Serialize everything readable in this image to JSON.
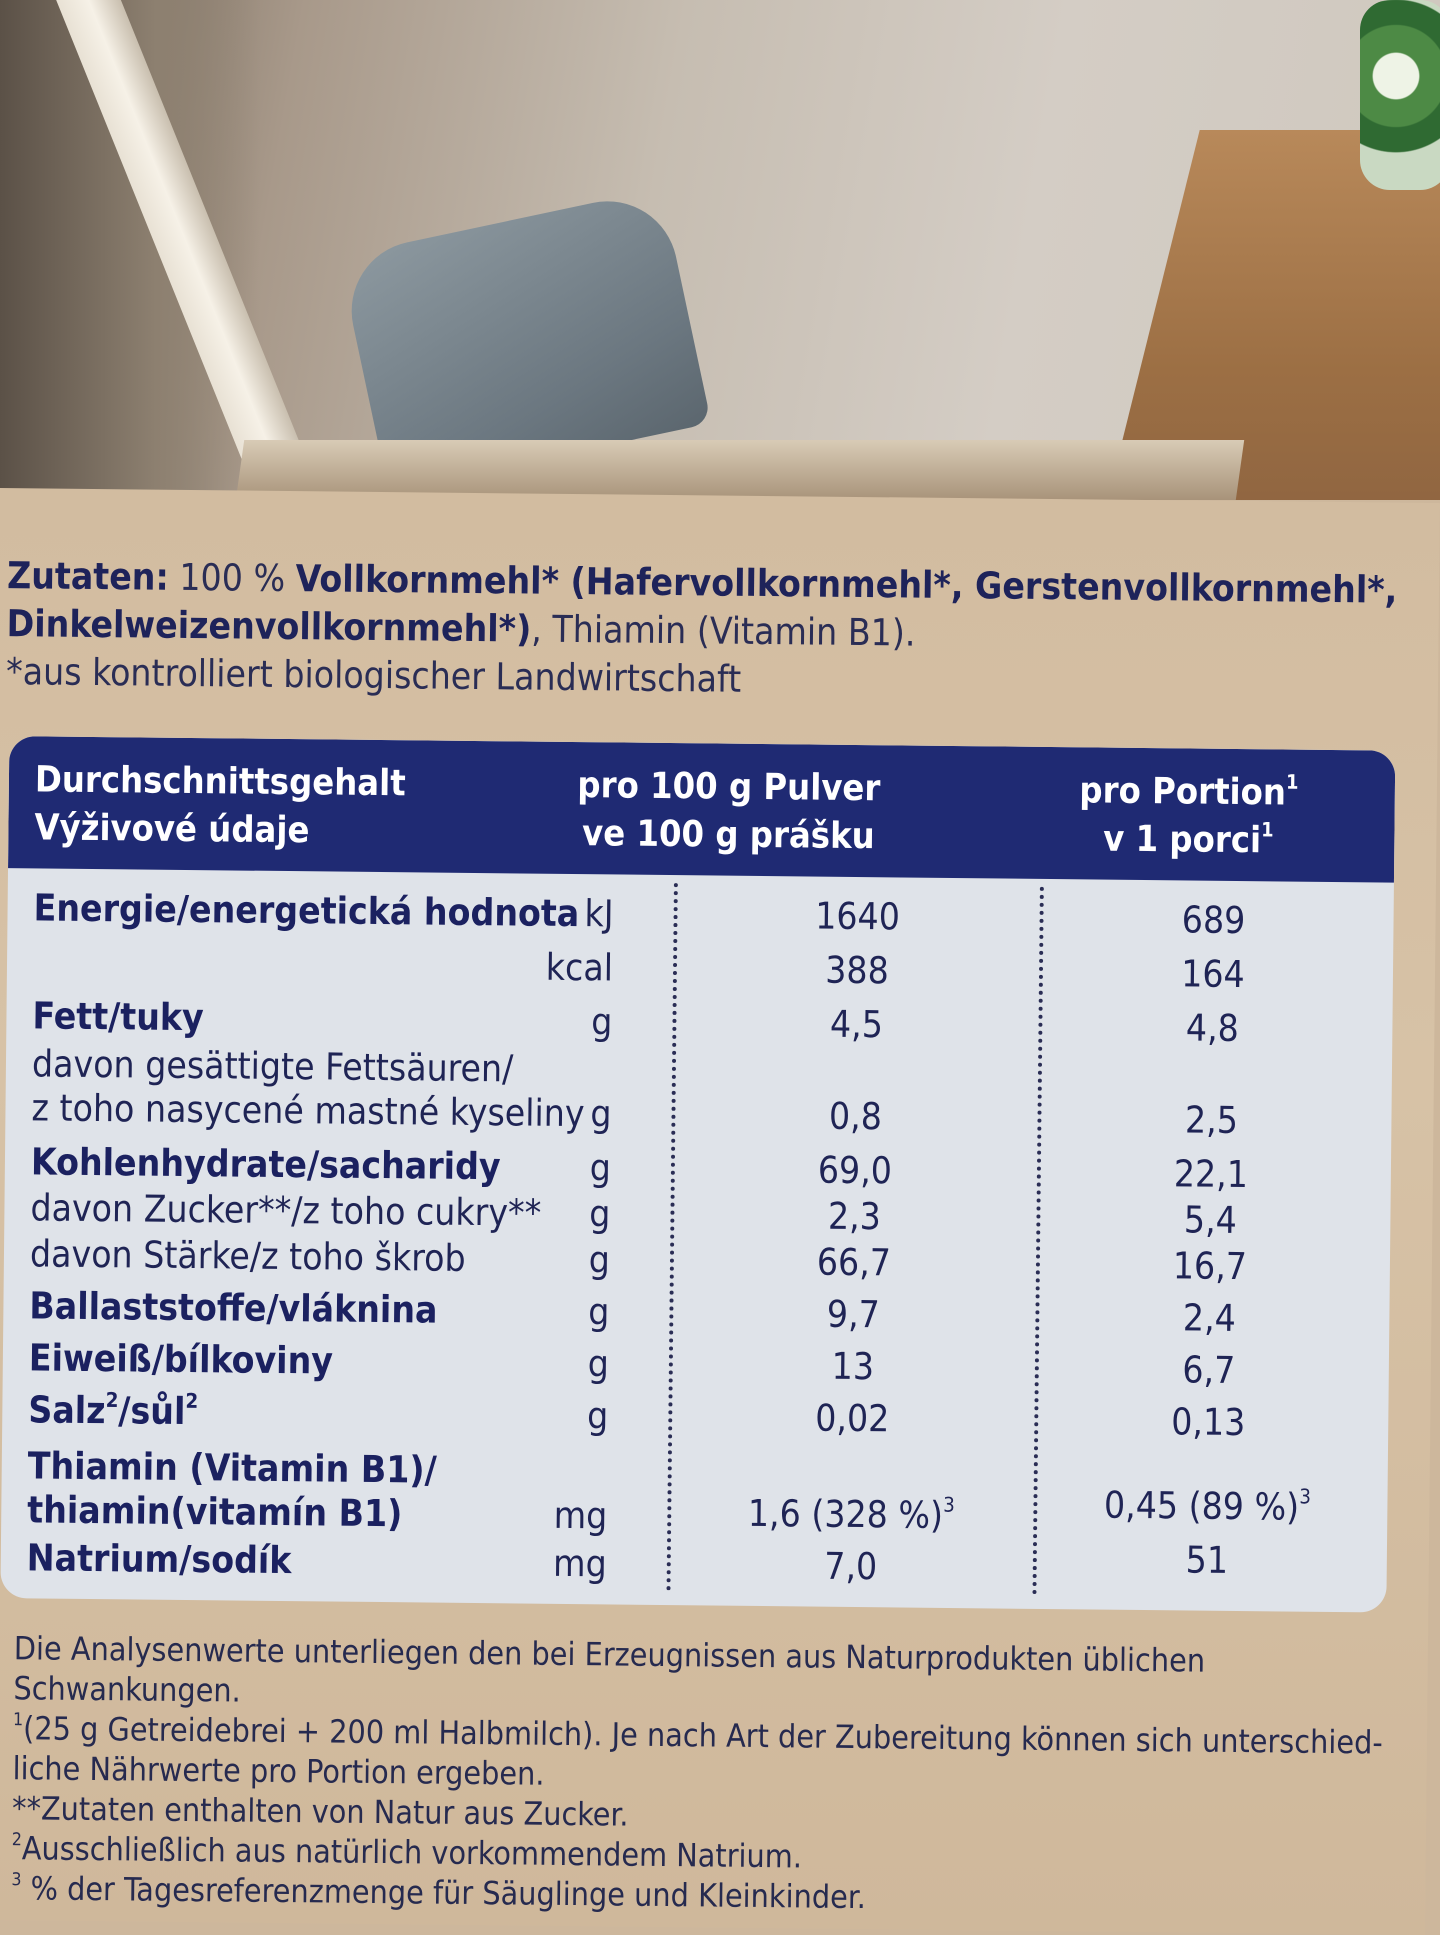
{
  "ingredients": {
    "label": "Zutaten:",
    "line1_plain": " 100 % ",
    "line1_bold": "Vollkornmehl* (Hafervollkornmehl*, Gerstenvollkornmehl*,",
    "line2_bold": "Dinkelweizenvollkornmehl*)",
    "line2_plain": ", Thiamin (Vitamin B1).",
    "line3": "*aus kontrolliert biologischer Landwirtschaft"
  },
  "table": {
    "header": {
      "col1_line1": "Durchschnittsgehalt",
      "col1_line2": "Výživové údaje",
      "col2_line1": "pro 100 g Pulver",
      "col2_line2": "ve 100 g prášku",
      "col3_line1": "pro Portion",
      "col3_line2": "v 1 porci",
      "col3_sup": "1"
    },
    "rows": [
      {
        "label": "Energie/energetická hodnota",
        "unit": "kJ",
        "per100": "1640",
        "portion": "689"
      },
      {
        "label": "",
        "unit": "kcal",
        "per100": "388",
        "portion": "164"
      },
      {
        "label": "Fett/tuky",
        "unit": "g",
        "per100": "4,5",
        "portion": "4,8"
      },
      {
        "label_line1": "davon gesättigte Fettsäuren/",
        "label_line2": "z toho nasycené mastné kyseliny",
        "unit": "g",
        "per100": "0,8",
        "portion": "2,5"
      },
      {
        "label": "Kohlenhydrate/sacharidy",
        "unit": "g",
        "per100": "69,0",
        "portion": "22,1"
      },
      {
        "label": "davon Zucker**/z toho cukry**",
        "unit": "g",
        "per100": "2,3",
        "portion": "5,4"
      },
      {
        "label": "davon Stärke/z toho škrob",
        "unit": "g",
        "per100": "66,7",
        "portion": "16,7"
      },
      {
        "label": "Ballaststoffe/vláknina",
        "unit": "g",
        "per100": "9,7",
        "portion": "2,4"
      },
      {
        "label": "Eiweiß/bílkoviny",
        "unit": "g",
        "per100": "13",
        "portion": "6,7"
      },
      {
        "label_a": "Salz",
        "label_b": "/sůl",
        "sup": "2",
        "unit": "g",
        "per100": "0,02",
        "portion": "0,13"
      },
      {
        "label_line1": "Thiamin (Vitamin B1)/",
        "label_line2": "thiamin(vitamín B1)",
        "unit": "mg",
        "per100": "1,6 (328 %)",
        "per100_sup": "3",
        "portion": "0,45 (89 %)",
        "portion_sup": "3"
      },
      {
        "label": "Natrium/sodík",
        "unit": "mg",
        "per100": "7,0",
        "portion": "51"
      }
    ]
  },
  "notes": {
    "n1": "Die Analysenwerte unterliegen den bei Erzeugnissen aus Naturprodukten üblichen Schwankungen.",
    "n2_sup": "1",
    "n2": "(25 g Getreidebrei + 200 ml Halbmilch). Je nach Art der Zubereitung können sich unterschied-liche Nährwerte pro Portion ergeben.",
    "n3": "**Zutaten enthalten von Natur aus Zucker.",
    "n4_sup": "2",
    "n4": "Ausschließlich aus natürlich vorkommendem Natrium.",
    "n5_sup": "3",
    "n5": " % der Tagesreferenzmenge für Säuglinge und Kleinkinder."
  }
}
